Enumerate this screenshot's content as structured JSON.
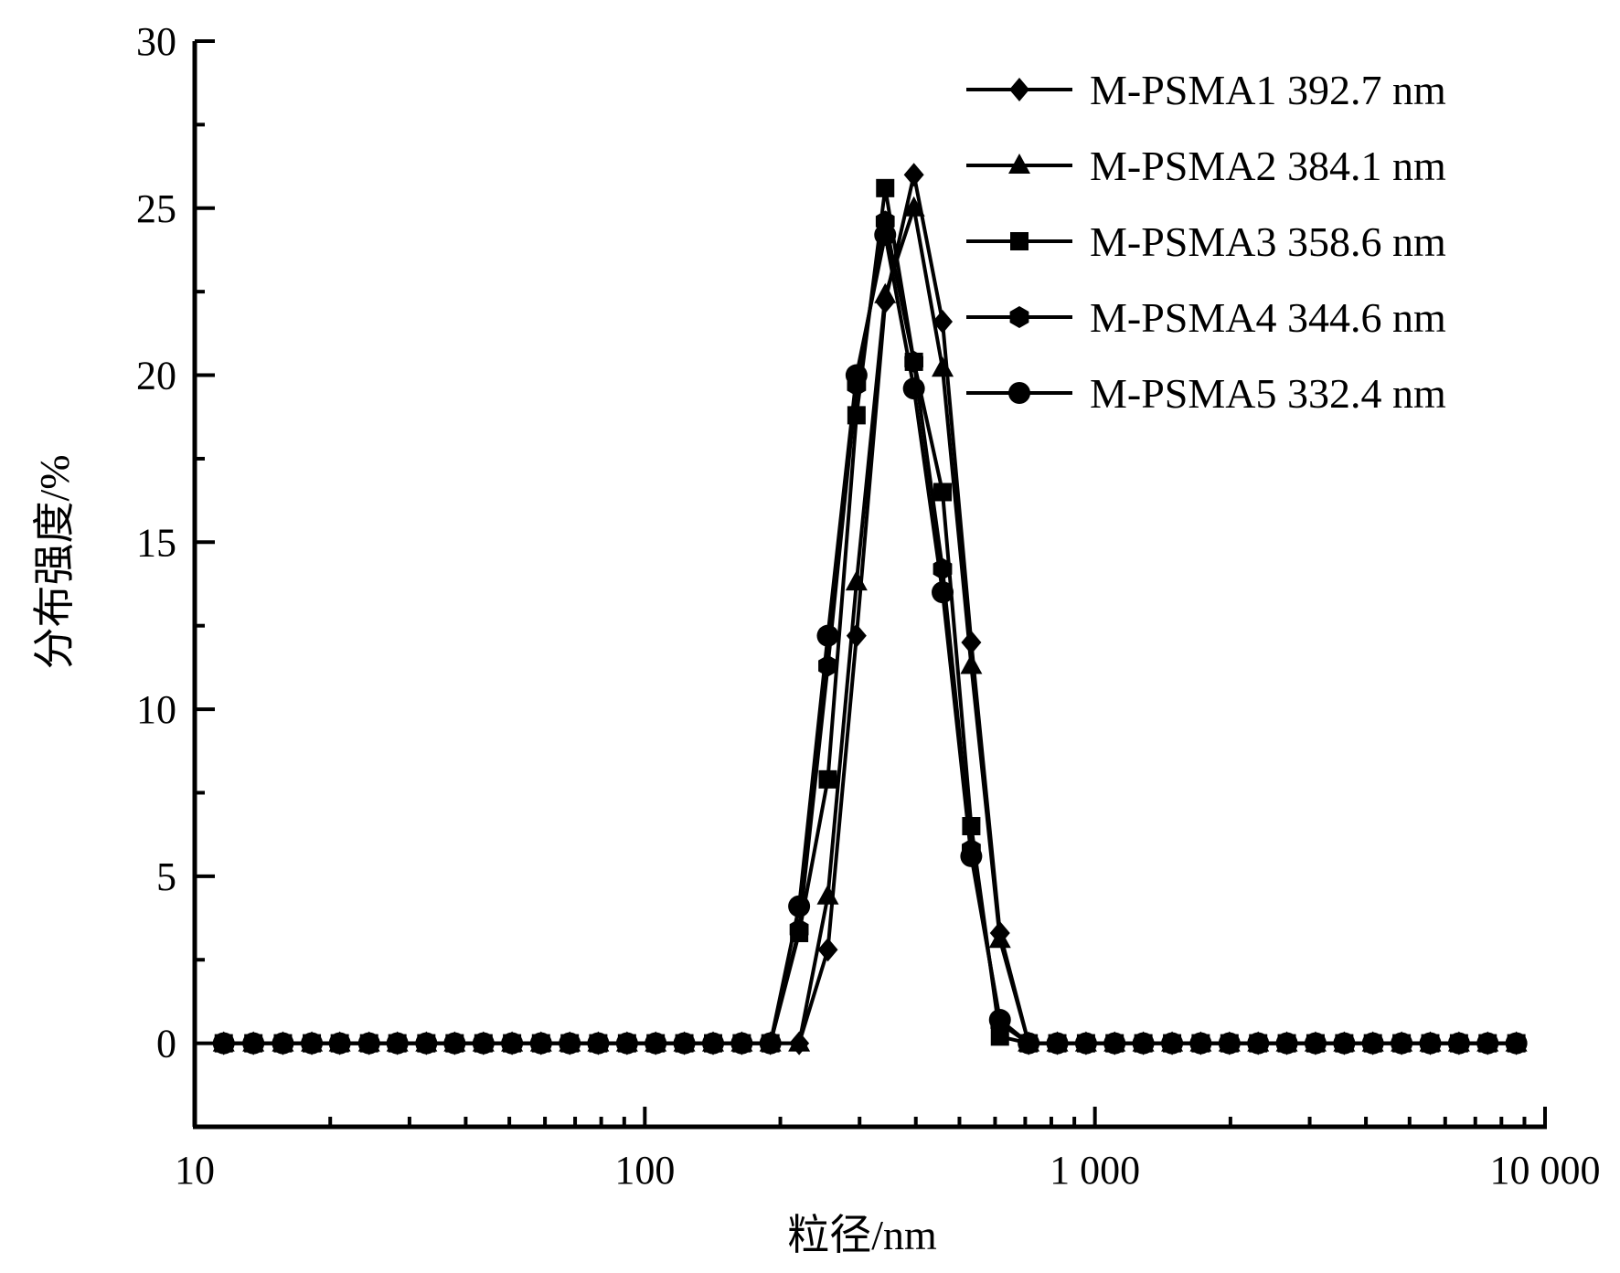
{
  "chart_data": {
    "type": "line",
    "xlabel": "粒径/nm",
    "ylabel": "分布强度/%",
    "x_scale": "log",
    "xlim": [
      10,
      10000
    ],
    "ylim": [
      -2.5,
      30
    ],
    "x_ticks": [
      10,
      100,
      1000,
      10000
    ],
    "x_tick_labels": [
      "10",
      "100",
      "1 000",
      "10 000"
    ],
    "y_ticks": [
      0,
      5,
      10,
      15,
      20,
      25,
      30
    ],
    "y_tick_labels": [
      "0",
      "5",
      "10",
      "15",
      "20",
      "25",
      "30"
    ],
    "legend_position": "top-right",
    "x": [
      11.6,
      13.5,
      15.7,
      18.2,
      21.0,
      24.4,
      28.2,
      32.7,
      37.8,
      43.8,
      50.7,
      58.8,
      68.1,
      78.8,
      91.3,
      105.7,
      122.4,
      141.8,
      164.2,
      190.1,
      220.2,
      255.0,
      295.3,
      342.0,
      396.1,
      458.7,
      531.2,
      615.1,
      712.4,
      825.0,
      955.4,
      1106.0,
      1281.0,
      1484.0,
      1718.0,
      1990.0,
      2305.0,
      2669.0,
      3091.0,
      3580.0,
      4145.0,
      4801.0,
      5560.0,
      6439.0,
      7456.0,
      8635.0
    ],
    "series": [
      {
        "name": "M-PSMA1 392.7 nm",
        "marker": "diamond",
        "values": [
          0,
          0,
          0,
          0,
          0,
          0,
          0,
          0,
          0,
          0,
          0,
          0,
          0,
          0,
          0,
          0,
          0,
          0,
          0,
          0,
          0,
          2.8,
          12.2,
          22.2,
          26.0,
          21.6,
          12.0,
          3.3,
          0,
          0,
          0,
          0,
          0,
          0,
          0,
          0,
          0,
          0,
          0,
          0,
          0,
          0,
          0,
          0,
          0,
          0
        ]
      },
      {
        "name": "M-PSMA2 384.1 nm",
        "marker": "triangle",
        "values": [
          0,
          0,
          0,
          0,
          0,
          0,
          0,
          0,
          0,
          0,
          0,
          0,
          0,
          0,
          0,
          0,
          0,
          0,
          0,
          0,
          0,
          4.4,
          13.8,
          22.4,
          25.0,
          20.2,
          11.3,
          3.1,
          0,
          0,
          0,
          0,
          0,
          0,
          0,
          0,
          0,
          0,
          0,
          0,
          0,
          0,
          0,
          0,
          0,
          0
        ]
      },
      {
        "name": "M-PSMA3 358.6 nm",
        "marker": "square",
        "values": [
          0,
          0,
          0,
          0,
          0,
          0,
          0,
          0,
          0,
          0,
          0,
          0,
          0,
          0,
          0,
          0,
          0,
          0,
          0,
          0,
          3.3,
          7.9,
          18.8,
          25.6,
          20.4,
          16.5,
          6.5,
          0.2,
          0,
          0,
          0,
          0,
          0,
          0,
          0,
          0,
          0,
          0,
          0,
          0,
          0,
          0,
          0,
          0,
          0,
          0
        ]
      },
      {
        "name": "M-PSMA4 344.6 nm",
        "marker": "hexagon",
        "values": [
          0,
          0,
          0,
          0,
          0,
          0,
          0,
          0,
          0,
          0,
          0,
          0,
          0,
          0,
          0,
          0,
          0,
          0,
          0,
          0,
          3.4,
          11.3,
          19.7,
          24.6,
          20.4,
          14.2,
          5.8,
          0.6,
          0,
          0,
          0,
          0,
          0,
          0,
          0,
          0,
          0,
          0,
          0,
          0,
          0,
          0,
          0,
          0,
          0,
          0
        ]
      },
      {
        "name": "M-PSMA5 332.4 nm",
        "marker": "circle",
        "values": [
          0,
          0,
          0,
          0,
          0,
          0,
          0,
          0,
          0,
          0,
          0,
          0,
          0,
          0,
          0,
          0,
          0,
          0,
          0,
          0,
          4.1,
          12.2,
          20.0,
          24.2,
          19.6,
          13.5,
          5.6,
          0.7,
          0,
          0,
          0,
          0,
          0,
          0,
          0,
          0,
          0,
          0,
          0,
          0,
          0,
          0,
          0,
          0,
          0,
          0
        ]
      }
    ]
  }
}
